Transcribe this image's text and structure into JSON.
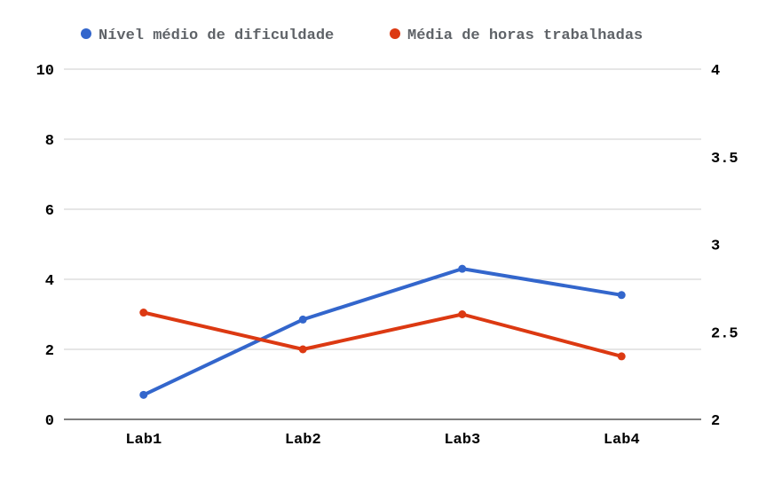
{
  "chart_data": {
    "type": "line",
    "categories": [
      "Lab1",
      "Lab2",
      "Lab3",
      "Lab4"
    ],
    "series": [
      {
        "name": "Nível médio de dificuldade",
        "axis": "left",
        "color": "#3366cc",
        "values": [
          0.7,
          2.85,
          4.3,
          3.55
        ]
      },
      {
        "name": "Média de horas trabalhadas",
        "axis": "right",
        "color": "#dc3912",
        "values": [
          2.61,
          2.4,
          2.6,
          2.36
        ]
      }
    ],
    "left_axis": {
      "ylim": [
        0,
        10
      ],
      "ticks": [
        "0",
        "2",
        "4",
        "6",
        "8",
        "10"
      ]
    },
    "right_axis": {
      "ylim": [
        2,
        4
      ],
      "ticks": [
        "2",
        "2.5",
        "3",
        "3.5",
        "4"
      ]
    },
    "grid": true,
    "legend_position": "top"
  }
}
